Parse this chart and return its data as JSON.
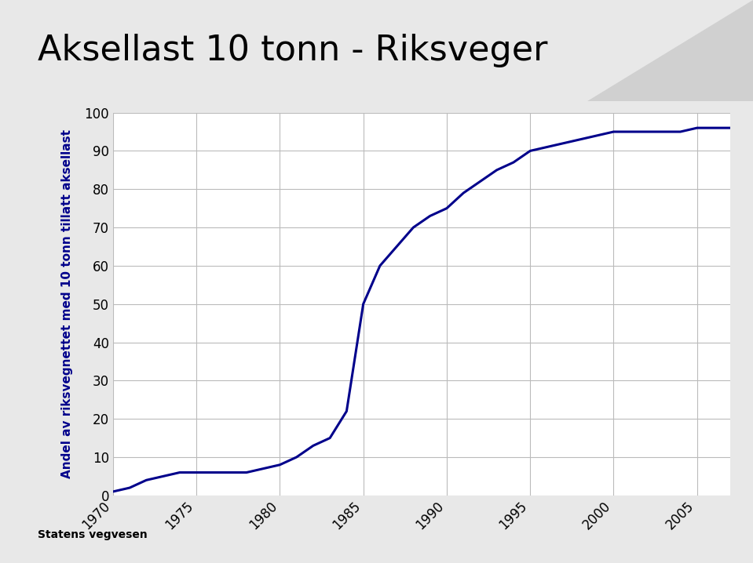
{
  "title": "Aksellast 10 tonn - Riksveger",
  "ylabel": "Andel av riksvegnettet med 10 tonn tillatt aksellast",
  "background_color": "#e8e8e8",
  "plot_bg_color": "#ffffff",
  "title_bg_color": "#cccccc",
  "line_color": "#00008B",
  "line_width": 2.2,
  "xlim": [
    1970,
    2007
  ],
  "ylim": [
    0,
    100
  ],
  "xticks": [
    1970,
    1975,
    1980,
    1985,
    1990,
    1995,
    2000,
    2005
  ],
  "yticks": [
    0,
    10,
    20,
    30,
    40,
    50,
    60,
    70,
    80,
    90,
    100
  ],
  "x": [
    1970,
    1971,
    1972,
    1973,
    1974,
    1975,
    1976,
    1977,
    1978,
    1979,
    1980,
    1981,
    1982,
    1983,
    1984,
    1985,
    1986,
    1987,
    1988,
    1989,
    1990,
    1991,
    1992,
    1993,
    1994,
    1995,
    1996,
    1997,
    1998,
    1999,
    2000,
    2001,
    2002,
    2003,
    2004,
    2005,
    2006,
    2007
  ],
  "y": [
    1,
    2,
    4,
    5,
    6,
    6,
    6,
    6,
    6,
    7,
    8,
    10,
    13,
    15,
    22,
    50,
    60,
    65,
    70,
    73,
    75,
    79,
    82,
    85,
    87,
    90,
    91,
    92,
    93,
    94,
    95,
    95,
    95,
    95,
    95,
    96,
    96,
    96
  ]
}
